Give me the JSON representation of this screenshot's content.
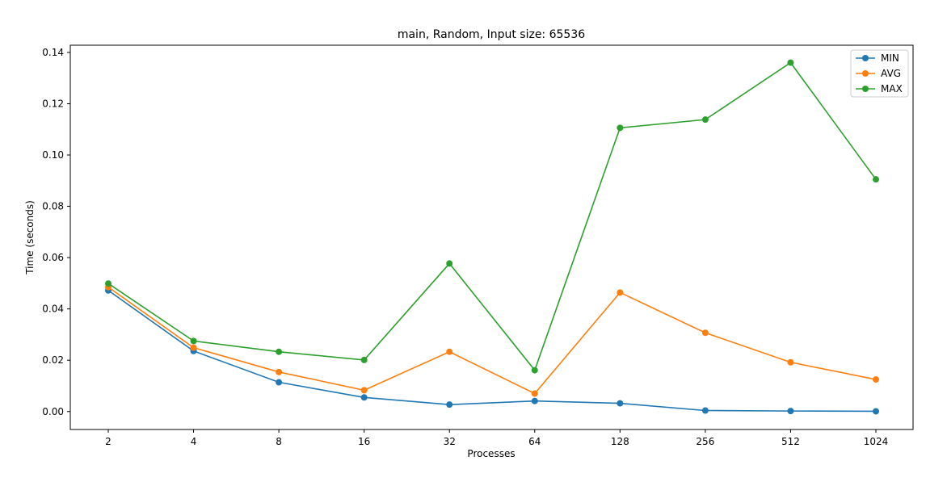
{
  "chart_data": {
    "type": "line",
    "title": "main, Random, Input size: 65536",
    "xlabel": "Processes",
    "ylabel": "Time (seconds)",
    "categories": [
      "2",
      "4",
      "8",
      "16",
      "32",
      "64",
      "128",
      "256",
      "512",
      "1024"
    ],
    "ylim": [
      -0.007,
      0.1428
    ],
    "yticks": [
      "0.00",
      "0.02",
      "0.04",
      "0.06",
      "0.08",
      "0.10",
      "0.12",
      "0.14"
    ],
    "ytick_values": [
      0,
      0.02,
      0.04,
      0.06,
      0.08,
      0.1,
      0.12,
      0.14
    ],
    "legend_position": "top-right",
    "grid": false,
    "series": [
      {
        "name": "MIN",
        "color": "#1f77b4",
        "values": [
          0.0472,
          0.0236,
          0.0114,
          0.0055,
          0.0027,
          0.0041,
          0.0032,
          0.0004,
          0.0002,
          0.0001
        ]
      },
      {
        "name": "AVG",
        "color": "#ff7f0e",
        "values": [
          0.0485,
          0.0249,
          0.0154,
          0.0083,
          0.0233,
          0.007,
          0.0464,
          0.0307,
          0.0192,
          0.0125
        ]
      },
      {
        "name": "MAX",
        "color": "#2ca02c",
        "values": [
          0.0499,
          0.0275,
          0.0233,
          0.0201,
          0.0577,
          0.0161,
          0.1106,
          0.1138,
          0.136,
          0.0905
        ]
      }
    ]
  }
}
